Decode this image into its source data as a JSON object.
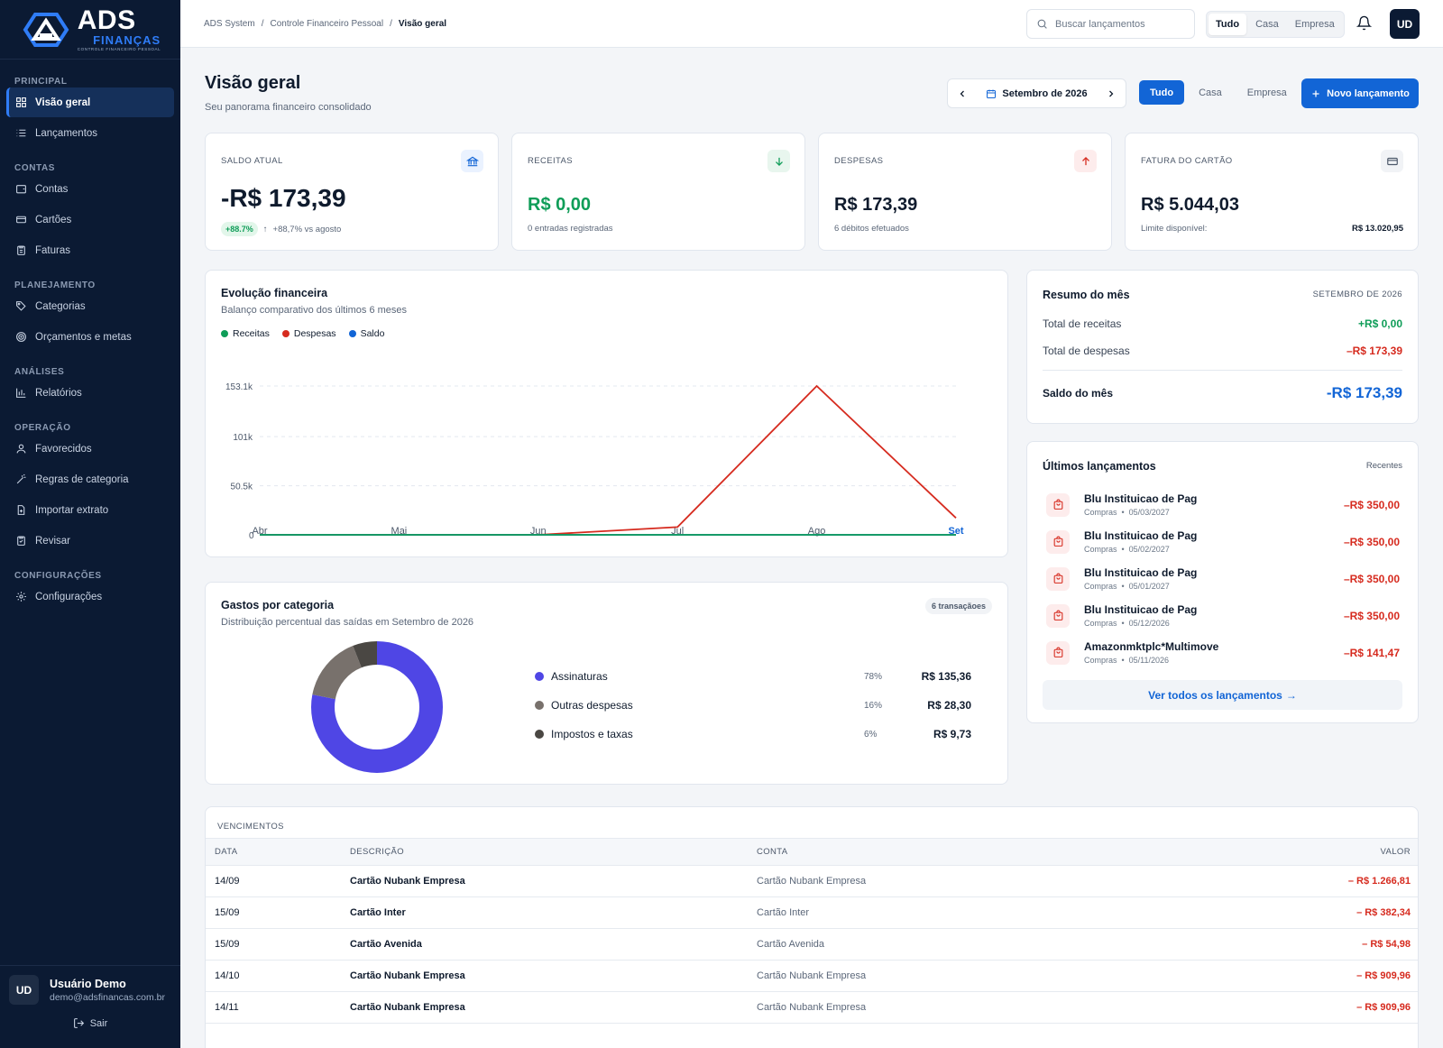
{
  "brand": {
    "name": "ADS",
    "sub": "FINANÇAS",
    "tagline": "CONTROLE FINANCEIRO PESSOAL"
  },
  "sidebar": {
    "sections": [
      {
        "title": "PRINCIPAL",
        "items": [
          {
            "label": "Visão geral",
            "icon": "grid-icon",
            "active": true
          },
          {
            "label": "Lançamentos",
            "icon": "list-icon"
          }
        ]
      },
      {
        "title": "CONTAS",
        "items": [
          {
            "label": "Contas",
            "icon": "wallet-icon"
          },
          {
            "label": "Cartões",
            "icon": "card-icon"
          },
          {
            "label": "Faturas",
            "icon": "clipboard-icon"
          }
        ]
      },
      {
        "title": "PLANEJAMENTO",
        "items": [
          {
            "label": "Categorias",
            "icon": "tag-icon"
          },
          {
            "label": "Orçamentos e metas",
            "icon": "target-icon"
          }
        ]
      },
      {
        "title": "ANÁLISES",
        "items": [
          {
            "label": "Relatórios",
            "icon": "bar-chart-icon"
          }
        ]
      },
      {
        "title": "OPERAÇÃO",
        "items": [
          {
            "label": "Favorecidos",
            "icon": "user-icon"
          },
          {
            "label": "Regras de categoria",
            "icon": "wand-icon"
          },
          {
            "label": "Importar extrato",
            "icon": "file-import-icon"
          },
          {
            "label": "Revisar",
            "icon": "clipboard-check-icon"
          }
        ]
      },
      {
        "title": "CONFIGURAÇÕES",
        "items": [
          {
            "label": "Configurações",
            "icon": "gear-icon"
          }
        ]
      }
    ],
    "user": {
      "initials": "UD",
      "name": "Usuário Demo",
      "email": "demo@adsfinancas.com.br",
      "logout": "Sair"
    }
  },
  "topbar": {
    "breadcrumb": [
      "ADS System",
      "Controle Financeiro Pessoal",
      "Visão geral"
    ],
    "search_placeholder": "Buscar lançamentos",
    "scope": [
      "Tudo",
      "Casa",
      "Empresa"
    ],
    "scope_selected": "Tudo",
    "avatar": "UD"
  },
  "header": {
    "title": "Visão geral",
    "subtitle": "Seu panorama financeiro consolidado",
    "month": "Setembro de 2026",
    "filter": [
      "Tudo",
      "Casa",
      "Empresa"
    ],
    "filter_selected": "Tudo",
    "new_button": "Novo lançamento"
  },
  "kpis": {
    "saldo": {
      "label": "SALDO ATUAL",
      "value": "-R$ 173,39",
      "badge": "+88.7%",
      "delta": "+88,7% vs agosto"
    },
    "receitas": {
      "label": "RECEITAS",
      "value": "R$ 0,00",
      "foot": "0 entradas registradas"
    },
    "despesas": {
      "label": "DESPESAS",
      "value": "R$ 173,39",
      "foot": "6 débitos efetuados"
    },
    "fatura": {
      "label": "FATURA DO CARTÃO",
      "value": "R$ 5.044,03",
      "limit_label": "Limite disponível:",
      "limit_value": "R$ 13.020,95"
    }
  },
  "evolucao": {
    "title": "Evolução financeira",
    "subtitle": "Balanço comparativo dos últimos 6 meses"
  },
  "chart_data": {
    "type": "line",
    "categories": [
      "Abr",
      "Mai",
      "Jun",
      "Jul",
      "Ago",
      "Set"
    ],
    "series": [
      {
        "name": "Receitas",
        "color": "#0f9d58",
        "values": [
          0,
          0,
          0,
          0,
          0,
          0
        ]
      },
      {
        "name": "Despesas",
        "color": "#d62b1f",
        "values": [
          0,
          0,
          0,
          8000,
          153100,
          17339
        ]
      },
      {
        "name": "Saldo",
        "color": "#1265d6",
        "values": [
          0,
          0,
          0,
          0,
          0,
          0
        ]
      }
    ],
    "yticks": [
      "0",
      "50.5k",
      "101k",
      "153.1k"
    ],
    "yticks_values": [
      0,
      50500,
      101000,
      153100
    ],
    "ylim": [
      0,
      153100
    ],
    "grid": true,
    "legend": "top-left"
  },
  "gastos": {
    "title": "Gastos por categoria",
    "subtitle": "Distribuição percentual das saídas em Setembro de 2026",
    "badge": "6 transaçãoes",
    "categories": [
      {
        "name": "Assinaturas",
        "pct": "78%",
        "share": 0.78,
        "value": "R$ 135,36",
        "color": "#4f46e5"
      },
      {
        "name": "Outras despesas",
        "pct": "16%",
        "share": 0.16,
        "value": "R$ 28,30",
        "color": "#78716c"
      },
      {
        "name": "Impostos e taxas",
        "pct": "6%",
        "share": 0.06,
        "value": "R$ 9,73",
        "color": "#4a4743"
      }
    ]
  },
  "resumo": {
    "title": "Resumo do mês",
    "period": "SETEMBRO DE 2026",
    "receitas_label": "Total de receitas",
    "receitas": "+R$ 0,00",
    "despesas_label": "Total de despesas",
    "despesas": "–R$ 173,39",
    "saldo_label": "Saldo do mês",
    "saldo": "-R$ 173,39"
  },
  "ultimos": {
    "title": "Últimos lançamentos",
    "tag": "Recentes",
    "link": "Ver todos os lançamentos",
    "items": [
      {
        "name": "Blu Instituicao de Pag",
        "cat": "Compras",
        "date": "05/03/2027",
        "amount": "–R$ 350,00"
      },
      {
        "name": "Blu Instituicao de Pag",
        "cat": "Compras",
        "date": "05/02/2027",
        "amount": "–R$ 350,00"
      },
      {
        "name": "Blu Instituicao de Pag",
        "cat": "Compras",
        "date": "05/01/2027",
        "amount": "–R$ 350,00"
      },
      {
        "name": "Blu Instituicao de Pag",
        "cat": "Compras",
        "date": "05/12/2026",
        "amount": "–R$ 350,00"
      },
      {
        "name": "Amazonmktplc*Multimove",
        "cat": "Compras",
        "date": "05/11/2026",
        "amount": "–R$ 141,47"
      }
    ]
  },
  "vencimentos": {
    "title": "VENCIMENTOS",
    "headers": [
      "DATA",
      "DESCRIÇÃO",
      "CONTA",
      "VALOR"
    ],
    "rows": [
      [
        "14/09",
        "Cartão Nubank Empresa",
        "Cartão Nubank Empresa",
        "– R$ 1.266,81"
      ],
      [
        "15/09",
        "Cartão Inter",
        "Cartão Inter",
        "– R$ 382,34"
      ],
      [
        "15/09",
        "Cartão Avenida",
        "Cartão Avenida",
        "– R$ 54,98"
      ],
      [
        "14/10",
        "Cartão Nubank Empresa",
        "Cartão Nubank Empresa",
        "– R$ 909,96"
      ],
      [
        "14/11",
        "Cartão Nubank Empresa",
        "Cartão Nubank Empresa",
        "– R$ 909,96"
      ]
    ]
  }
}
